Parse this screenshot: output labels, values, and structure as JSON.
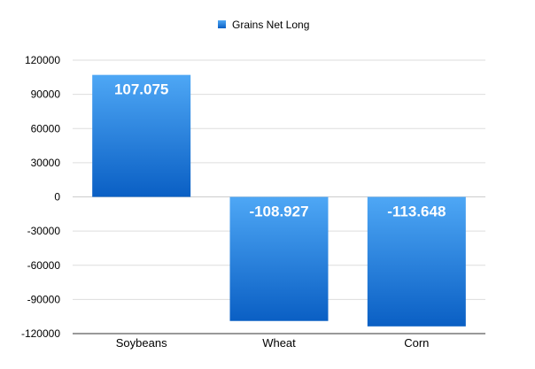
{
  "chart_data": {
    "type": "bar",
    "categories": [
      "Soybeans",
      "Wheat",
      "Corn"
    ],
    "series": [
      {
        "name": "Grains Net Long",
        "values": [
          107075,
          -108927,
          -113648
        ],
        "labels": [
          "107.075",
          "-108.927",
          "-113.648"
        ]
      }
    ],
    "yticks": [
      120000,
      90000,
      60000,
      30000,
      0,
      -30000,
      -60000,
      -90000,
      -120000
    ],
    "ytick_labels": [
      "120000",
      "90000",
      "60000",
      "30000",
      "0",
      "-30000",
      "-60000",
      "-90000",
      "-120000"
    ],
    "ylim": [
      -120000,
      120000
    ],
    "grid": true,
    "legend": "top-center",
    "colors": {
      "bar_top": "#4ea7f5",
      "bar_bottom": "#0a5fc4",
      "grid": "#dddddd"
    }
  }
}
